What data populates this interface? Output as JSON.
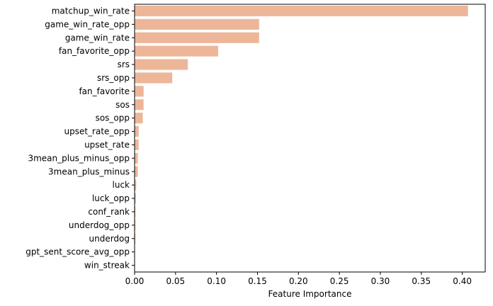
{
  "chart_data": {
    "type": "bar",
    "orientation": "horizontal",
    "xlabel": "Feature Importance",
    "ylabel": "",
    "title": "",
    "xlim": [
      0,
      0.428
    ],
    "xticks": [
      "0.00",
      "0.05",
      "0.10",
      "0.15",
      "0.20",
      "0.25",
      "0.30",
      "0.35",
      "0.40"
    ],
    "bar_color": "#EDB699",
    "grid": false,
    "categories": [
      "matchup_win_rate",
      "game_win_rate_opp",
      "game_win_rate",
      "fan_favorite_opp",
      "srs",
      "srs_opp",
      "fan_favorite",
      "sos",
      "sos_opp",
      "upset_rate_opp",
      "upset_rate",
      "3mean_plus_minus_opp",
      "3mean_plus_minus",
      "luck",
      "luck_opp",
      "conf_rank",
      "underdog_opp",
      "underdog",
      "gpt_sent_score_avg_opp",
      "win_streak"
    ],
    "values": [
      0.407,
      0.152,
      0.152,
      0.102,
      0.065,
      0.046,
      0.011,
      0.011,
      0.01,
      0.005,
      0.005,
      0.004,
      0.004,
      0.002,
      0.0015,
      0.001,
      0.001,
      0.001,
      0.0005,
      0.0005
    ]
  }
}
